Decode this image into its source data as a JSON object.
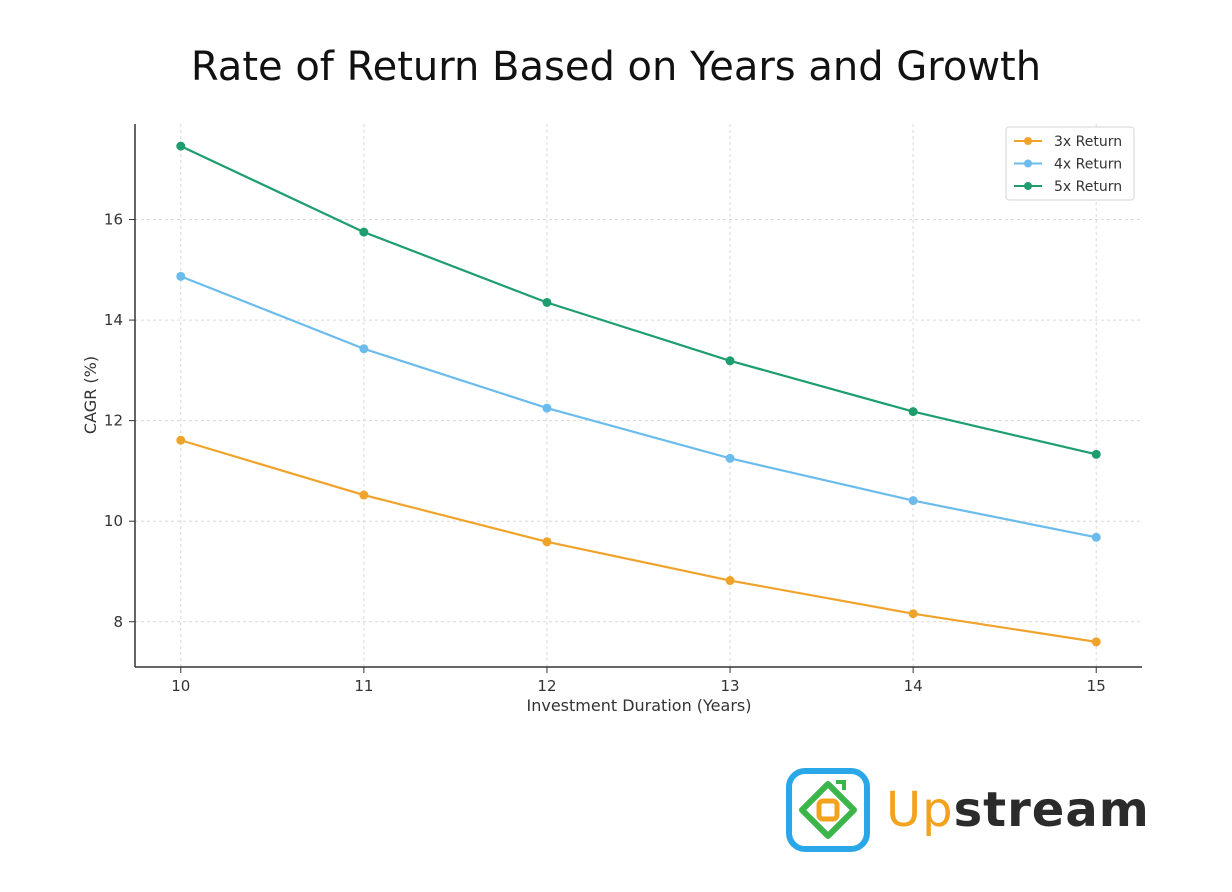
{
  "chart_data": {
    "type": "line",
    "title": "Rate of Return Based on Years and Growth",
    "xlabel": "Investment Duration (Years)",
    "ylabel": "CAGR (%)",
    "x": [
      10,
      11,
      12,
      13,
      14,
      15
    ],
    "x_ticks": [
      "10",
      "11",
      "12",
      "13",
      "14",
      "15"
    ],
    "y_ticks": [
      "8",
      "10",
      "12",
      "14",
      "16"
    ],
    "xlim": [
      9.75,
      15.25
    ],
    "ylim": [
      7.1,
      17.9
    ],
    "grid": true,
    "legend_position": "top-right",
    "series": [
      {
        "name": "3x Return",
        "color": "#f0a32a",
        "values": [
          11.61,
          10.52,
          9.59,
          8.82,
          8.16,
          7.6
        ]
      },
      {
        "name": "4x Return",
        "color": "#6bbcec",
        "values": [
          14.87,
          13.43,
          12.25,
          11.25,
          10.41,
          9.68
        ]
      },
      {
        "name": "5x Return",
        "color": "#1e9e6f",
        "values": [
          17.46,
          15.75,
          14.35,
          13.19,
          12.18,
          11.33
        ]
      }
    ]
  },
  "logo": {
    "text_up": "Up",
    "text_stream": "stream",
    "icon": "upstream-logo-icon",
    "colors": {
      "blue": "#2aa7e8",
      "green": "#3bb54a",
      "orange": "#f2a31d"
    }
  }
}
